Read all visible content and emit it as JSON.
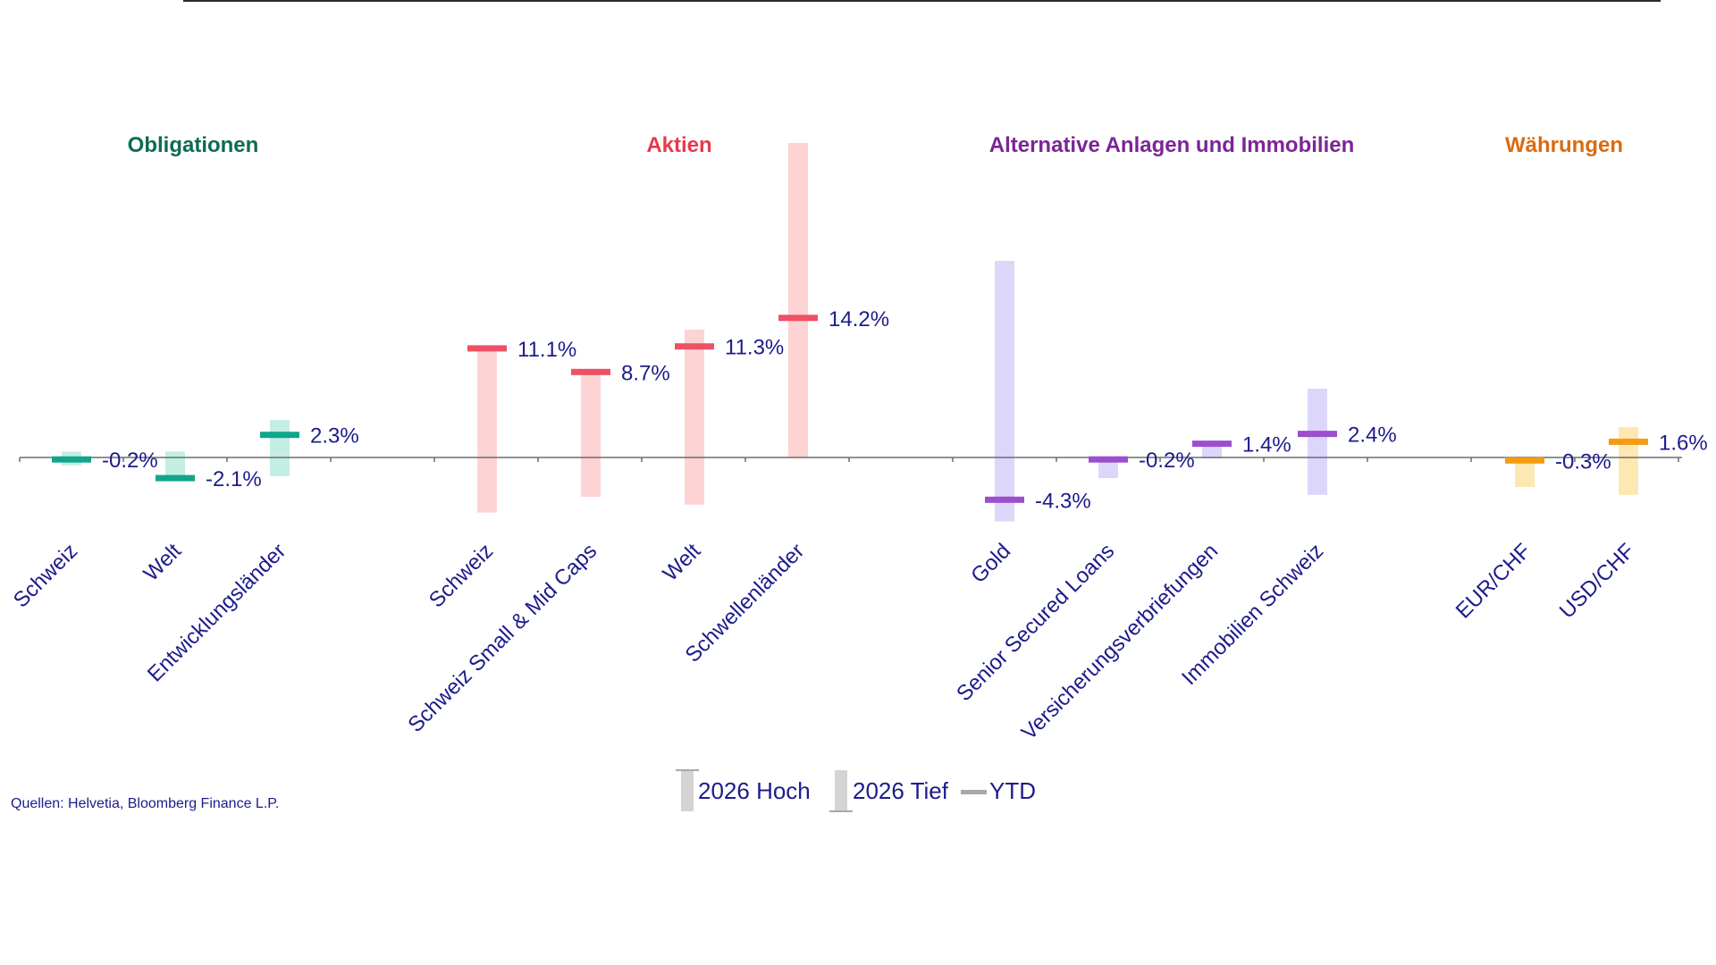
{
  "source_note": "Quellen: Helvetia, Bloomberg Finance L.P.",
  "legend": {
    "high": "2026 Hoch",
    "low": "2026 Tief",
    "ytd": "YTD"
  },
  "chart_data": {
    "type": "floating-range-with-marker",
    "ylim": [
      -6,
      20
    ],
    "grid": false,
    "legend_position": "bottom-center",
    "groups": [
      {
        "name": "Obligationen",
        "color": "#0e6b54",
        "mark_color": "#12a589",
        "band_color": "#c3eee3",
        "items": [
          {
            "label": "Schweiz",
            "ytd": -0.2,
            "ytd_label": "-0.2%",
            "low": -0.8,
            "high": 0.6
          },
          {
            "label": "Welt",
            "ytd": -2.1,
            "ytd_label": "-2.1%",
            "low": -2.3,
            "high": 0.6
          },
          {
            "label": "Entwicklungsländer",
            "ytd": 2.3,
            "ytd_label": "2.3%",
            "low": -1.9,
            "high": 3.8
          }
        ]
      },
      {
        "name": "Aktien",
        "color": "#e8394f",
        "mark_color": "#ec5165",
        "band_color": "#fdd3d3",
        "items": [
          {
            "label": "Schweiz",
            "ytd": 11.1,
            "ytd_label": "11.1%",
            "low": -5.6,
            "high": 11.1
          },
          {
            "label": "Schweiz Small & Mid Caps",
            "ytd": 8.7,
            "ytd_label": "8.7%",
            "low": -4.0,
            "high": 8.7
          },
          {
            "label": "Welt",
            "ytd": 11.3,
            "ytd_label": "11.3%",
            "low": -4.8,
            "high": 13.0
          },
          {
            "label": "Schwellenländer",
            "ytd": 14.2,
            "ytd_label": "14.2%",
            "low": 0.0,
            "high": 32.0
          }
        ]
      },
      {
        "name": "Alternative Anlagen und Immobilien",
        "color": "#7b2596",
        "mark_color": "#9b4fcf",
        "band_color": "#ddd6fb",
        "items": [
          {
            "label": "Gold",
            "ytd": -4.3,
            "ytd_label": "-4.3%",
            "low": -6.5,
            "high": 20.0
          },
          {
            "label": "Senior Secured Loans",
            "ytd": -0.2,
            "ytd_label": "-0.2%",
            "low": -2.1,
            "high": 0.0
          },
          {
            "label": "Versicherungsverbriefungen",
            "ytd": 1.4,
            "ytd_label": "1.4%",
            "low": -0.1,
            "high": 1.4
          },
          {
            "label": "Immobilien Schweiz",
            "ytd": 2.4,
            "ytd_label": "2.4%",
            "low": -3.8,
            "high": 7.0
          }
        ]
      },
      {
        "name": "Währungen",
        "color": "#d96b10",
        "mark_color": "#f39c12",
        "band_color": "#fde8b2",
        "items": [
          {
            "label": "EUR/CHF",
            "ytd": -0.3,
            "ytd_label": "-0.3%",
            "low": -3.0,
            "high": 0.1
          },
          {
            "label": "USD/CHF",
            "ytd": 1.6,
            "ytd_label": "1.6%",
            "low": -3.8,
            "high": 3.1
          }
        ]
      }
    ]
  }
}
